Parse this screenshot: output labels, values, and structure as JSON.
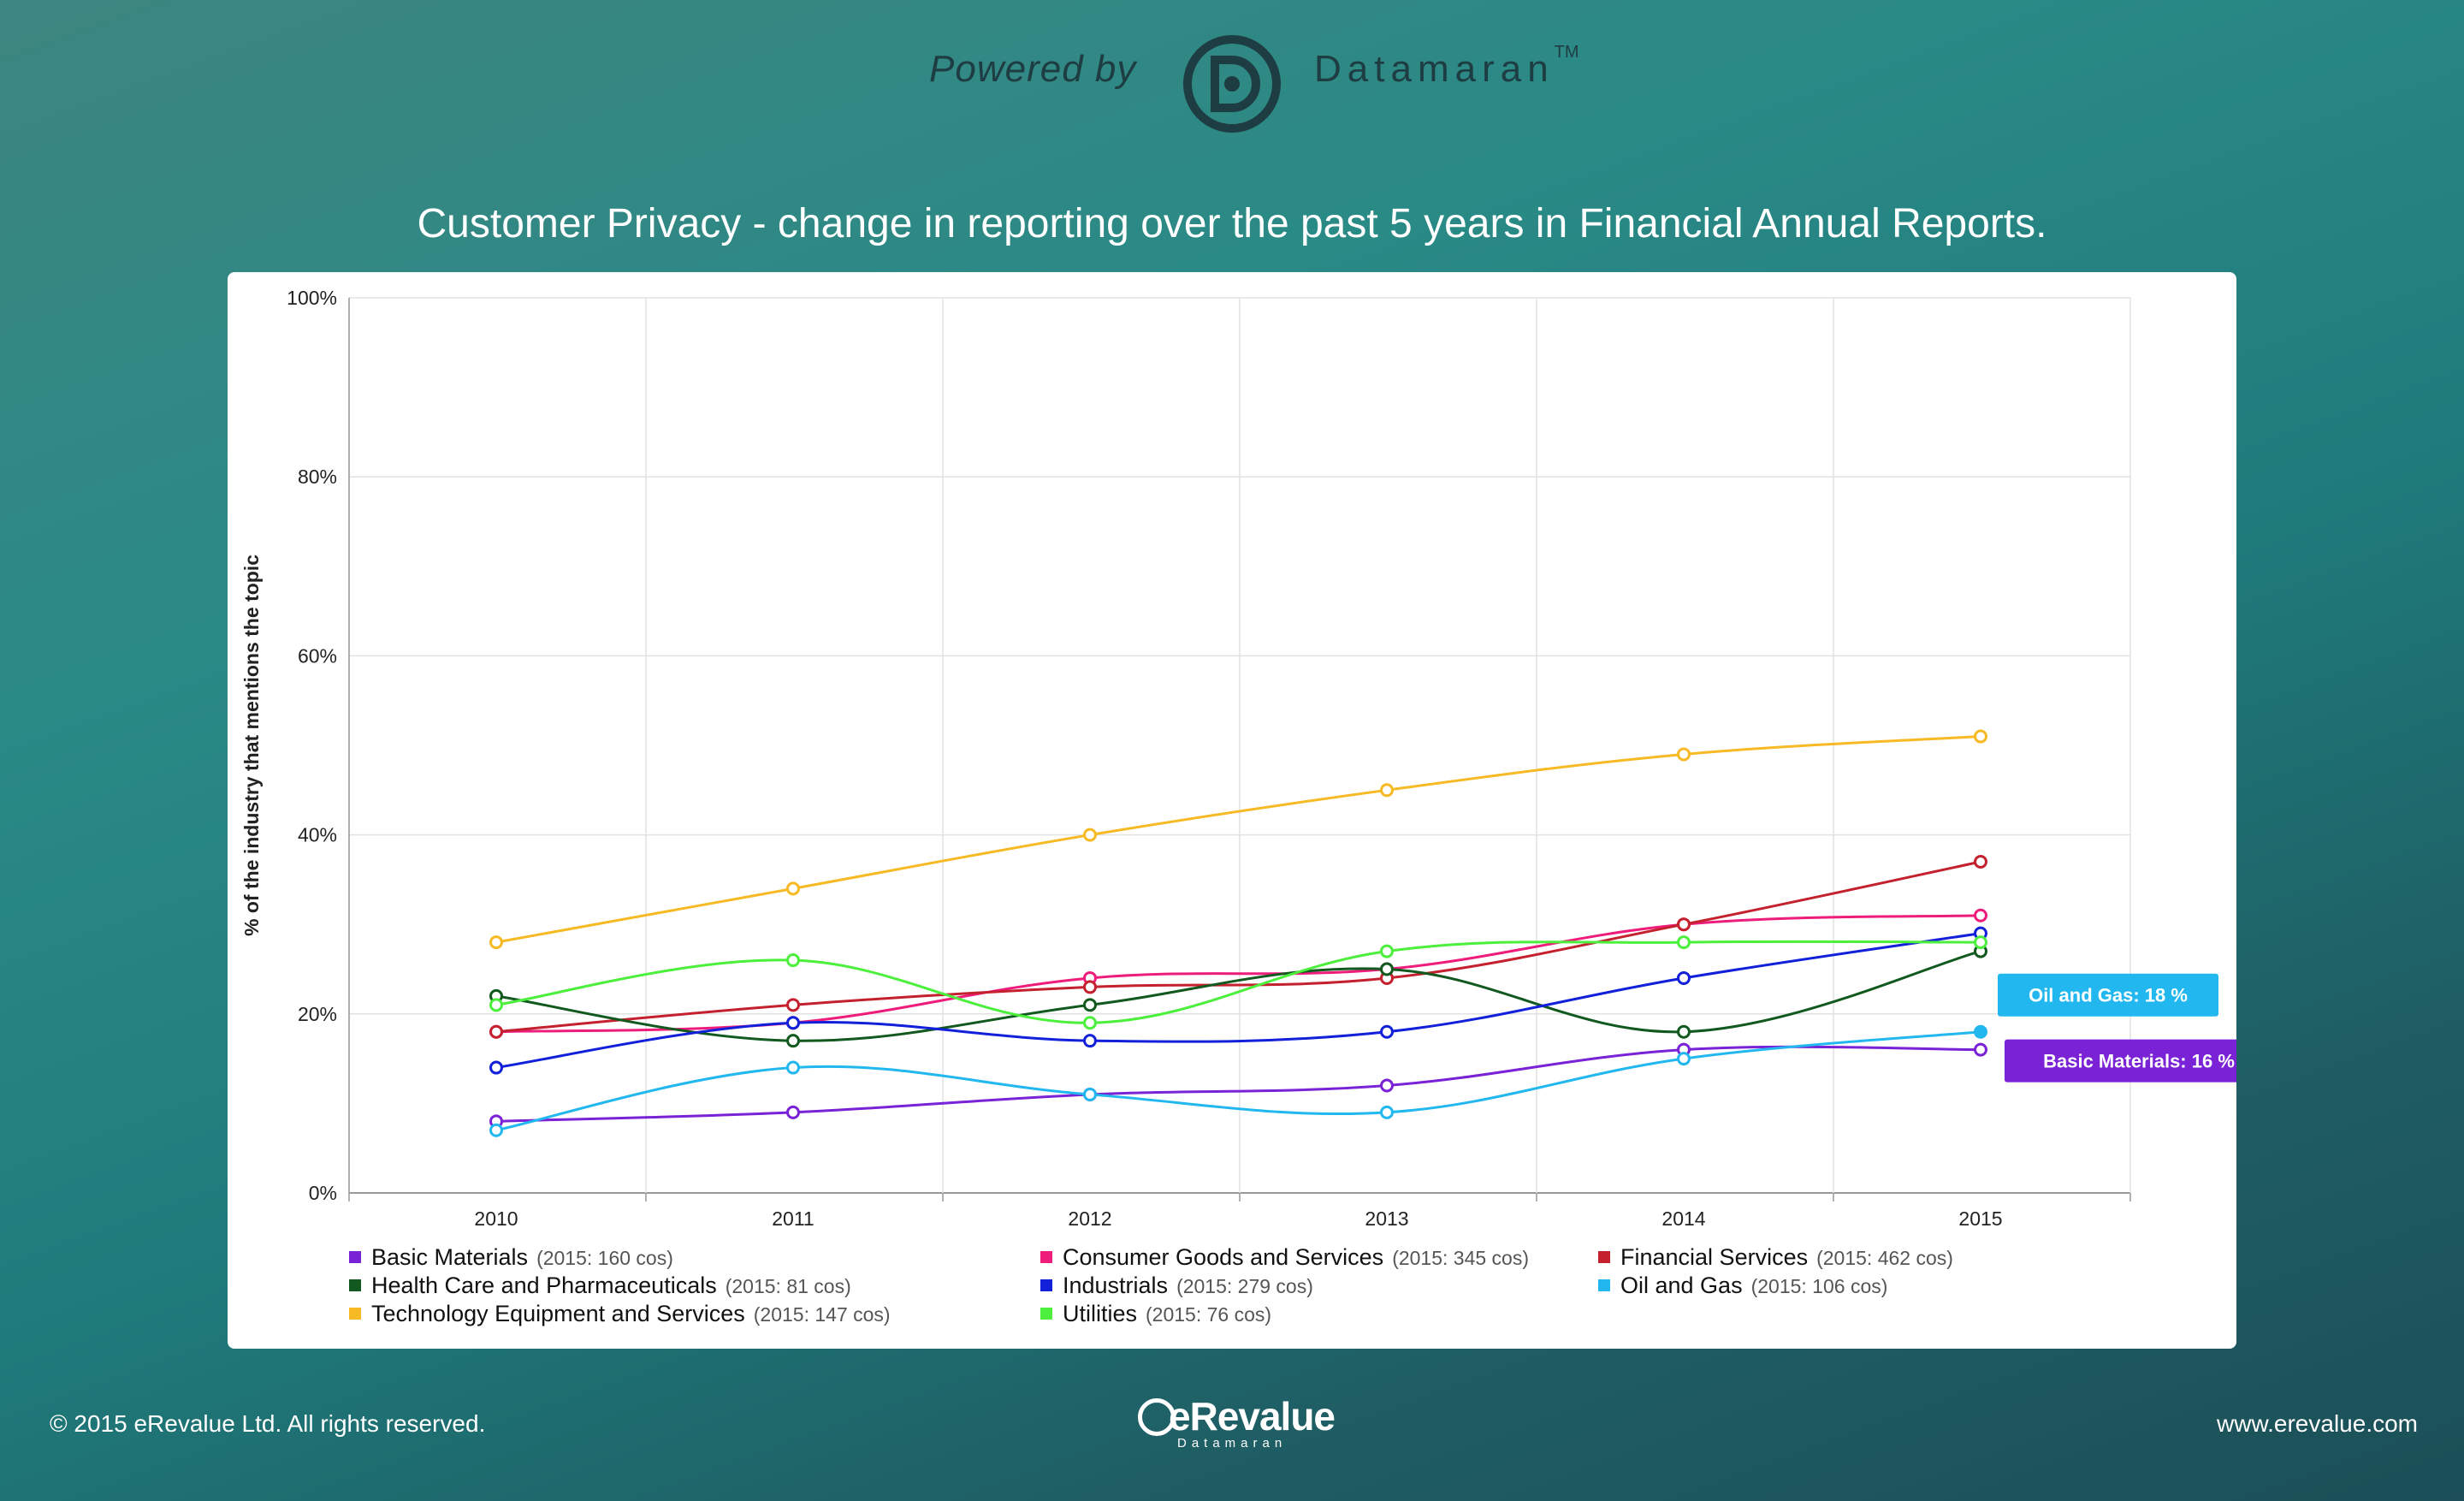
{
  "header": {
    "powered_by": "Powered by",
    "brand": "Datamaran",
    "trademark": "TM"
  },
  "title": "Customer Privacy - change in reporting over the past 5 years in Financial Annual Reports.",
  "chart_data": {
    "type": "line",
    "title": "Customer Privacy - change in reporting over the past 5 years in Financial Annual Reports.",
    "xlabel": "",
    "ylabel": "% of the industry that mentions the topic",
    "categories": [
      "2010",
      "2011",
      "2012",
      "2013",
      "2014",
      "2015"
    ],
    "ylim": [
      0,
      100
    ],
    "yticks": [
      0,
      20,
      40,
      60,
      80,
      100
    ],
    "ytick_labels": [
      "0%",
      "20%",
      "40%",
      "60%",
      "80%",
      "100%"
    ],
    "grid": true,
    "smooth": true,
    "series": [
      {
        "name": "Basic Materials",
        "note": "(2015: 160 cos)",
        "color": "#7a22d6",
        "values": [
          8,
          9,
          11,
          12,
          16,
          16
        ]
      },
      {
        "name": "Consumer Goods and Services",
        "note": "(2015: 345 cos)",
        "color": "#ee1c7a",
        "values": [
          18,
          19,
          24,
          25,
          30,
          31
        ]
      },
      {
        "name": "Financial Services",
        "note": "(2015: 462 cos)",
        "color": "#c4202e",
        "values": [
          18,
          21,
          23,
          24,
          30,
          37
        ]
      },
      {
        "name": "Health Care and Pharmaceuticals",
        "note": "(2015: 81 cos)",
        "color": "#11591e",
        "values": [
          22,
          17,
          21,
          25,
          18,
          27
        ]
      },
      {
        "name": "Industrials",
        "note": "(2015: 279 cos)",
        "color": "#1221d9",
        "values": [
          14,
          19,
          17,
          18,
          24,
          29
        ]
      },
      {
        "name": "Oil and Gas",
        "note": "(2015: 106 cos)",
        "color": "#22b8ef",
        "values": [
          7,
          14,
          11,
          9,
          15,
          18
        ]
      },
      {
        "name": "Technology Equipment and Services",
        "note": "(2015: 147 cos)",
        "color": "#f7b924",
        "values": [
          28,
          34,
          40,
          45,
          49,
          51
        ]
      },
      {
        "name": "Utilities",
        "note": "(2015: 76 cos)",
        "color": "#4cef3c",
        "values": [
          21,
          26,
          19,
          27,
          28,
          28
        ]
      }
    ],
    "annotations": [
      {
        "series": "Oil and Gas",
        "text": "Oil and Gas: 18 %",
        "color": "#22b8ef"
      },
      {
        "series": "Basic Materials",
        "text": "Basic Materials: 16 %",
        "color": "#7a22d6"
      }
    ]
  },
  "footer": {
    "copyright": "© 2015 eRevalue Ltd. All rights reserved.",
    "logo_text": "eRevalue",
    "logo_sub": "Datamaran",
    "website": "www.erevalue.com"
  }
}
